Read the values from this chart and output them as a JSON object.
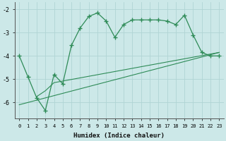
{
  "xlabel": "Humidex (Indice chaleur)",
  "bg_color": "#cce8e8",
  "line_color": "#2e8b57",
  "grid_color": "#b0d4d4",
  "xlim": [
    -0.5,
    23.5
  ],
  "ylim": [
    -6.7,
    -1.7
  ],
  "yticks": [
    -6,
    -5,
    -4,
    -3,
    -2
  ],
  "xticks": [
    0,
    1,
    2,
    3,
    4,
    5,
    6,
    7,
    8,
    9,
    10,
    11,
    12,
    13,
    14,
    15,
    16,
    17,
    18,
    19,
    20,
    21,
    22,
    23
  ],
  "curve1_x": [
    0,
    1,
    2,
    3,
    4,
    5,
    6,
    7,
    8,
    9,
    10,
    11,
    12,
    13,
    14,
    15,
    16,
    17,
    18,
    19,
    20,
    21,
    22,
    23
  ],
  "curve1_y": [
    -4.0,
    -4.9,
    -5.8,
    -6.35,
    -4.8,
    -5.2,
    -3.55,
    -2.8,
    -2.3,
    -2.15,
    -2.5,
    -3.2,
    -2.65,
    -2.45,
    -2.45,
    -2.45,
    -2.45,
    -2.5,
    -2.65,
    -2.25,
    -3.1,
    -3.85,
    -4.0,
    -4.0
  ],
  "curve2_x": [
    2,
    3,
    4,
    23
  ],
  "curve2_y": [
    -5.75,
    -5.5,
    -5.15,
    -3.85
  ],
  "curve3_x": [
    0,
    23
  ],
  "curve3_y": [
    -6.1,
    -3.85
  ]
}
